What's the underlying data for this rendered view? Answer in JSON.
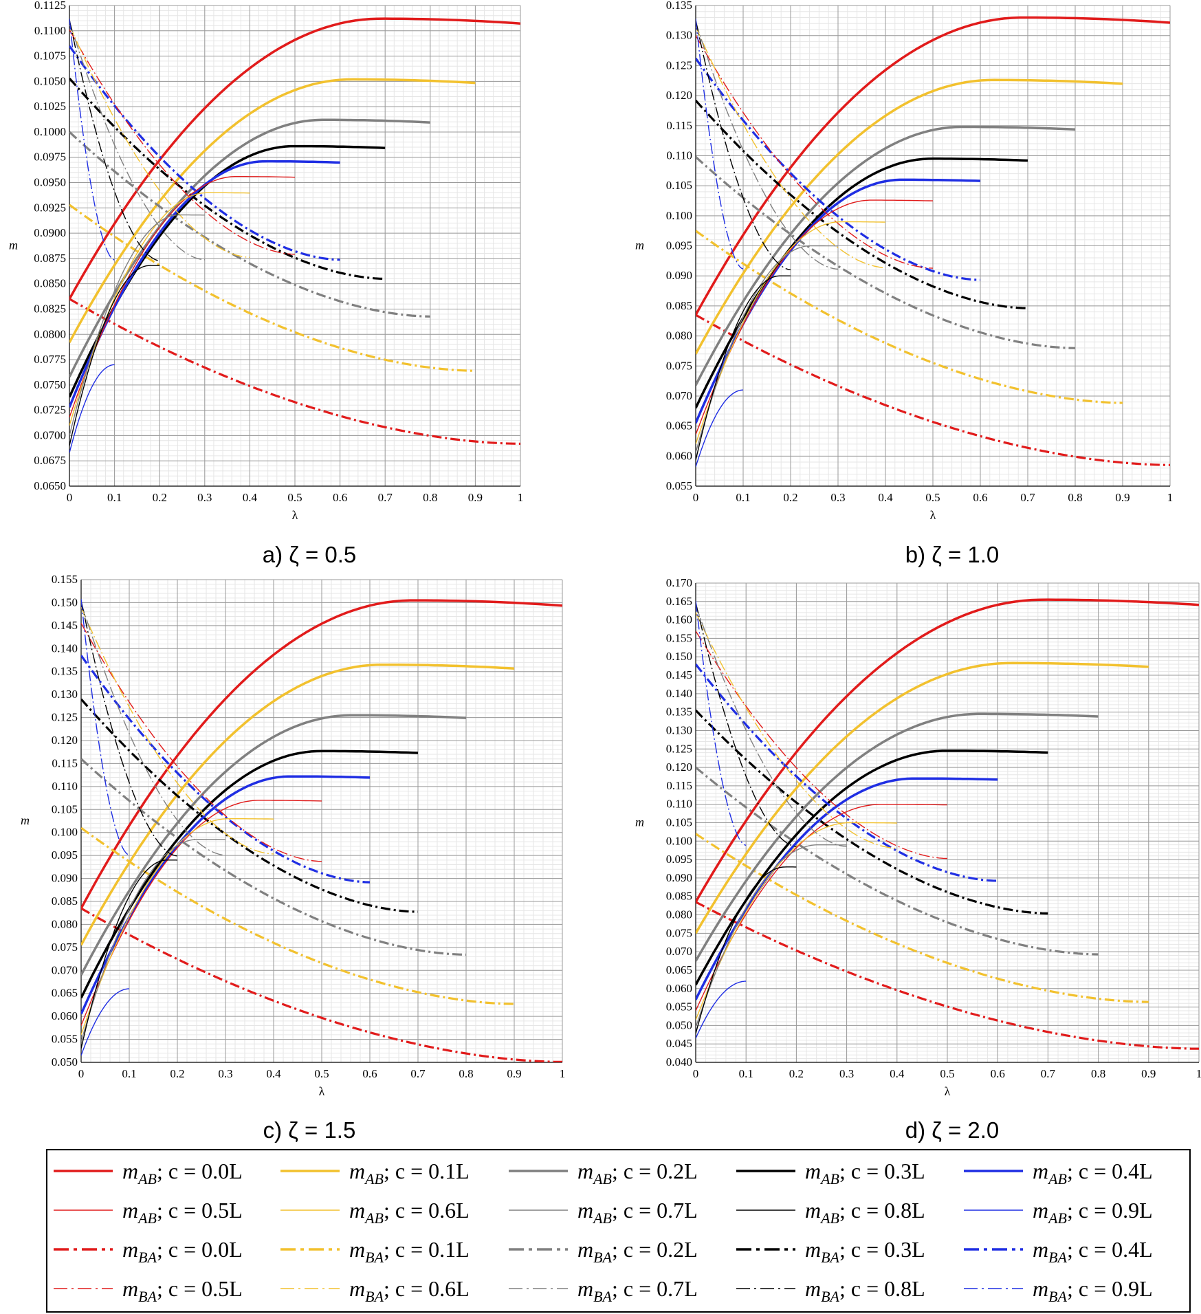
{
  "chart_data": [
    {
      "type": "line",
      "caption": "a) ζ = 0.5",
      "xlabel": "λ",
      "ylabel": "m",
      "xlim": [
        0,
        1
      ],
      "ylim": [
        0.065,
        0.1125
      ],
      "ystep": 0.0025,
      "ydecimals": 4,
      "xticks": [
        "0",
        "0.1",
        "0.2",
        "0.3",
        "0.4",
        "0.5",
        "0.6",
        "0.7",
        "0.8",
        "0.9",
        "1"
      ],
      "params": {
        "abStart": [
          0.0835,
          0.0792,
          0.0758,
          0.0738,
          0.0728,
          0.0718,
          0.071,
          0.07,
          0.069,
          0.0683
        ],
        "abPeak": [
          0.1112,
          0.1052,
          0.1012,
          0.0986,
          0.0971,
          0.0956,
          0.094,
          0.0918,
          0.0868,
          0.077
        ],
        "baStart": [
          0.0835,
          0.0928,
          0.1,
          0.1053,
          0.1085,
          0.1101,
          0.1106,
          0.1109,
          0.1111,
          0.1112
        ],
        "baScale": 0.93,
        "baShape": [
          0.0835,
          0.0673
        ]
      }
    },
    {
      "type": "line",
      "caption": "b) ζ = 1.0",
      "xlabel": "λ",
      "ylabel": "m",
      "xlim": [
        0,
        1
      ],
      "ylim": [
        0.055,
        0.135
      ],
      "ystep": 0.005,
      "ydecimals": 3,
      "xticks": [
        "0",
        "0.1",
        "0.2",
        "0.3",
        "0.4",
        "0.5",
        "0.6",
        "0.7",
        "0.8",
        "0.9",
        "1"
      ],
      "params": {
        "abStart": [
          0.0835,
          0.077,
          0.0718,
          0.068,
          0.0655,
          0.0636,
          0.062,
          0.0606,
          0.0593,
          0.0582
        ],
        "abPeak": [
          0.133,
          0.1226,
          0.1148,
          0.1095,
          0.106,
          0.1026,
          0.099,
          0.095,
          0.09,
          0.071
        ],
        "baStart": [
          0.0835,
          0.0975,
          0.1098,
          0.1192,
          0.1262,
          0.13,
          0.1315,
          0.1322,
          0.1326,
          0.1328
        ],
        "baScale": 1.0,
        "baShape": [
          0.0835,
          0.0572
        ]
      }
    },
    {
      "type": "line",
      "caption": "c) ζ = 1.5",
      "xlabel": "λ",
      "ylabel": "m",
      "xlim": [
        0,
        1
      ],
      "ylim": [
        0.05,
        0.155
      ],
      "ystep": 0.005,
      "ydecimals": 3,
      "xticks": [
        "0",
        "0.1",
        "0.2",
        "0.3",
        "0.4",
        "0.5",
        "0.6",
        "0.7",
        "0.8",
        "0.9",
        "1"
      ],
      "params": {
        "abStart": [
          0.0835,
          0.0755,
          0.069,
          0.064,
          0.0605,
          0.058,
          0.056,
          0.0545,
          0.053,
          0.0515
        ],
        "abPeak": [
          0.1505,
          0.1365,
          0.1255,
          0.1177,
          0.1122,
          0.107,
          0.103,
          0.0985,
          0.094,
          0.066
        ],
        "baStart": [
          0.0835,
          0.101,
          0.116,
          0.129,
          0.1385,
          0.1455,
          0.149,
          0.15,
          0.1505,
          0.1508
        ],
        "baScale": 1.05,
        "baShape": [
          0.0835,
          0.05
        ]
      }
    },
    {
      "type": "line",
      "caption": "d) ζ = 2.0",
      "xlabel": "λ",
      "ylabel": "m",
      "xlim": [
        0,
        1
      ],
      "ylim": [
        0.04,
        0.17
      ],
      "ystep": 0.005,
      "ydecimals": 3,
      "xticks": [
        "0",
        "0.1",
        "0.2",
        "0.3",
        "0.4",
        "0.5",
        "0.6",
        "0.7",
        "0.8",
        "0.9",
        "1"
      ],
      "params": {
        "abStart": [
          0.0835,
          0.075,
          0.0675,
          0.061,
          0.057,
          0.054,
          0.0515,
          0.0495,
          0.0478,
          0.0465
        ],
        "abPeak": [
          0.1655,
          0.1483,
          0.1345,
          0.1245,
          0.117,
          0.11,
          0.105,
          0.099,
          0.093,
          0.062
        ],
        "baStart": [
          0.0835,
          0.102,
          0.12,
          0.1355,
          0.148,
          0.157,
          0.162,
          0.164,
          0.1648,
          0.1652
        ],
        "baScale": 1.08,
        "baShape": [
          0.0835,
          0.0447
        ]
      }
    }
  ],
  "series_style": {
    "c_labels": [
      "c = 0.0L",
      "c = 0.1L",
      "c = 0.2L",
      "c = 0.3L",
      "c = 0.4L",
      "c = 0.5L",
      "c = 0.6L",
      "c = 0.7L",
      "c = 0.8L",
      "c = 0.9L"
    ],
    "colors": [
      "#e11b1b",
      "#f2c12e",
      "#808080",
      "#000000",
      "#1f2ee3",
      "#e11b1b",
      "#f2c12e",
      "#808080",
      "#000000",
      "#1f2ee3"
    ]
  },
  "legend": {
    "rows": [
      [
        "mAB; c = 0.0L",
        "mAB; c = 0.1L",
        "mAB; c = 0.2L",
        "mAB; c = 0.3L",
        "mAB; c = 0.4L"
      ],
      [
        "mAB; c = 0.5L",
        "mAB; c = 0.6L",
        "mAB; c = 0.7L",
        "mAB; c = 0.8L",
        "mAB; c = 0.9L"
      ],
      [
        "mBA; c = 0.0L",
        "mBA; c = 0.1L",
        "mBA; c = 0.2L",
        "mBA; c = 0.3L",
        "mBA; c = 0.4L"
      ],
      [
        "mBA; c = 0.5L",
        "mBA; c = 0.6L",
        "mBA; c = 0.7L",
        "mBA; c = 0.8L",
        "mBA; c = 0.9L"
      ]
    ],
    "names": [
      "mAB",
      "mBA"
    ],
    "separator": ";"
  }
}
